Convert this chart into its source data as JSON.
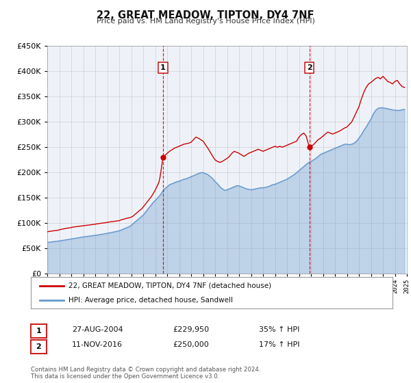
{
  "title": "22, GREAT MEADOW, TIPTON, DY4 7NF",
  "subtitle": "Price paid vs. HM Land Registry's House Price Index (HPI)",
  "legend_entry1": "22, GREAT MEADOW, TIPTON, DY4 7NF (detached house)",
  "legend_entry2": "HPI: Average price, detached house, Sandwell",
  "sale1_date": "27-AUG-2004",
  "sale1_price": "£229,950",
  "sale1_hpi": "35% ↑ HPI",
  "sale1_x": 2004.65,
  "sale1_y": 229950,
  "sale2_date": "11-NOV-2016",
  "sale2_price": "£250,000",
  "sale2_hpi": "17% ↑ HPI",
  "sale2_x": 2016.86,
  "sale2_y": 250000,
  "footer1": "Contains HM Land Registry data © Crown copyright and database right 2024.",
  "footer2": "This data is licensed under the Open Government Licence v3.0.",
  "red_color": "#cc0000",
  "blue_color": "#6699cc",
  "chart_bg": "#eef2f8",
  "fig_bg": "#ffffff",
  "ylim": [
    0,
    450000
  ],
  "xlim_start": 1995,
  "xlim_end": 2025,
  "red_line": {
    "x": [
      1995.0,
      1995.1,
      1995.2,
      1995.3,
      1995.4,
      1995.5,
      1995.6,
      1995.7,
      1995.8,
      1995.9,
      1996.0,
      1996.1,
      1996.2,
      1996.3,
      1996.4,
      1996.5,
      1996.6,
      1996.7,
      1996.8,
      1996.9,
      1997.0,
      1997.1,
      1997.2,
      1997.3,
      1997.4,
      1997.5,
      1997.6,
      1997.7,
      1997.8,
      1997.9,
      1998.0,
      1998.1,
      1998.2,
      1998.3,
      1998.4,
      1998.5,
      1998.6,
      1998.7,
      1998.8,
      1998.9,
      1999.0,
      1999.1,
      1999.2,
      1999.3,
      1999.4,
      1999.5,
      1999.6,
      1999.7,
      1999.8,
      1999.9,
      2000.0,
      2000.1,
      2000.2,
      2000.3,
      2000.4,
      2000.5,
      2000.6,
      2000.7,
      2000.8,
      2000.9,
      2001.0,
      2001.1,
      2001.2,
      2001.3,
      2001.4,
      2001.5,
      2001.6,
      2001.7,
      2001.8,
      2001.9,
      2002.0,
      2002.1,
      2002.2,
      2002.3,
      2002.4,
      2002.5,
      2002.6,
      2002.7,
      2002.8,
      2002.9,
      2003.0,
      2003.1,
      2003.2,
      2003.3,
      2003.4,
      2003.5,
      2003.6,
      2003.7,
      2003.8,
      2003.9,
      2004.0,
      2004.1,
      2004.2,
      2004.3,
      2004.4,
      2004.5,
      2004.65,
      2005.0,
      2005.2,
      2005.4,
      2005.6,
      2005.8,
      2006.0,
      2006.2,
      2006.4,
      2006.6,
      2006.8,
      2007.0,
      2007.2,
      2007.4,
      2007.6,
      2007.8,
      2008.0,
      2008.2,
      2008.4,
      2008.6,
      2008.8,
      2009.0,
      2009.2,
      2009.4,
      2009.6,
      2009.8,
      2010.0,
      2010.2,
      2010.4,
      2010.6,
      2010.8,
      2011.0,
      2011.2,
      2011.4,
      2011.6,
      2011.8,
      2012.0,
      2012.2,
      2012.4,
      2012.6,
      2012.8,
      2013.0,
      2013.2,
      2013.4,
      2013.6,
      2013.8,
      2014.0,
      2014.2,
      2014.4,
      2014.6,
      2014.8,
      2015.0,
      2015.2,
      2015.4,
      2015.6,
      2015.8,
      2016.0,
      2016.2,
      2016.4,
      2016.6,
      2016.86,
      2017.0,
      2017.2,
      2017.4,
      2017.6,
      2017.8,
      2018.0,
      2018.2,
      2018.4,
      2018.6,
      2018.8,
      2019.0,
      2019.2,
      2019.4,
      2019.6,
      2019.8,
      2020.0,
      2020.2,
      2020.4,
      2020.6,
      2020.8,
      2021.0,
      2021.2,
      2021.4,
      2021.6,
      2021.8,
      2022.0,
      2022.2,
      2022.4,
      2022.6,
      2022.8,
      2023.0,
      2023.2,
      2023.4,
      2023.6,
      2023.8,
      2024.0,
      2024.2,
      2024.4,
      2024.6,
      2024.8
    ],
    "y": [
      83000,
      83500,
      84000,
      84200,
      84500,
      85000,
      85200,
      85500,
      85800,
      86000,
      87000,
      87500,
      88000,
      88500,
      89000,
      89500,
      90000,
      90200,
      90500,
      91000,
      91500,
      92000,
      92500,
      92800,
      93000,
      93500,
      93800,
      94000,
      94200,
      94500,
      95000,
      95200,
      95500,
      95800,
      96000,
      96500,
      96800,
      97000,
      97200,
      97500,
      98000,
      98500,
      98800,
      99000,
      99500,
      100000,
      100200,
      100500,
      100800,
      101000,
      101500,
      102000,
      102500,
      102800,
      103000,
      103500,
      103800,
      104000,
      104200,
      104500,
      105000,
      106000,
      107000,
      107500,
      108000,
      109000,
      109500,
      110000,
      110500,
      111000,
      112000,
      113000,
      115000,
      117000,
      119000,
      121000,
      123000,
      125000,
      127000,
      129000,
      132000,
      135000,
      138000,
      141000,
      144000,
      147000,
      150000,
      153000,
      157000,
      161000,
      165000,
      170000,
      175000,
      180000,
      190000,
      205000,
      229950,
      238000,
      242000,
      245000,
      248000,
      250000,
      252000,
      254000,
      256000,
      257000,
      258000,
      260000,
      265000,
      270000,
      268000,
      265000,
      262000,
      255000,
      248000,
      240000,
      232000,
      225000,
      222000,
      220000,
      222000,
      225000,
      228000,
      232000,
      238000,
      242000,
      240000,
      238000,
      235000,
      232000,
      235000,
      238000,
      240000,
      242000,
      244000,
      246000,
      244000,
      242000,
      244000,
      246000,
      248000,
      250000,
      252000,
      250000,
      252000,
      250000,
      252000,
      254000,
      256000,
      258000,
      260000,
      262000,
      270000,
      275000,
      278000,
      272000,
      250000,
      252000,
      255000,
      260000,
      265000,
      268000,
      272000,
      276000,
      280000,
      278000,
      276000,
      278000,
      280000,
      282000,
      285000,
      288000,
      290000,
      295000,
      300000,
      310000,
      320000,
      330000,
      345000,
      358000,
      368000,
      375000,
      378000,
      382000,
      386000,
      388000,
      385000,
      390000,
      385000,
      380000,
      378000,
      375000,
      380000,
      382000,
      375000,
      370000,
      368000
    ]
  },
  "blue_line": {
    "x": [
      1995.0,
      1995.1,
      1995.2,
      1995.3,
      1995.4,
      1995.5,
      1995.6,
      1995.7,
      1995.8,
      1995.9,
      1996.0,
      1996.1,
      1996.2,
      1996.3,
      1996.4,
      1996.5,
      1996.6,
      1996.7,
      1996.8,
      1996.9,
      1997.0,
      1997.1,
      1997.2,
      1997.3,
      1997.4,
      1997.5,
      1997.6,
      1997.7,
      1997.8,
      1997.9,
      1998.0,
      1998.1,
      1998.2,
      1998.3,
      1998.4,
      1998.5,
      1998.6,
      1998.7,
      1998.8,
      1998.9,
      1999.0,
      1999.1,
      1999.2,
      1999.3,
      1999.4,
      1999.5,
      1999.6,
      1999.7,
      1999.8,
      1999.9,
      2000.0,
      2000.1,
      2000.2,
      2000.3,
      2000.4,
      2000.5,
      2000.6,
      2000.7,
      2000.8,
      2000.9,
      2001.0,
      2001.1,
      2001.2,
      2001.3,
      2001.4,
      2001.5,
      2001.6,
      2001.7,
      2001.8,
      2001.9,
      2002.0,
      2002.2,
      2002.4,
      2002.6,
      2002.8,
      2003.0,
      2003.2,
      2003.4,
      2003.6,
      2003.8,
      2004.0,
      2004.2,
      2004.4,
      2004.6,
      2004.8,
      2005.0,
      2005.2,
      2005.4,
      2005.6,
      2005.8,
      2006.0,
      2006.2,
      2006.4,
      2006.6,
      2006.8,
      2007.0,
      2007.2,
      2007.4,
      2007.6,
      2007.8,
      2008.0,
      2008.2,
      2008.4,
      2008.6,
      2008.8,
      2009.0,
      2009.2,
      2009.4,
      2009.6,
      2009.8,
      2010.0,
      2010.2,
      2010.4,
      2010.6,
      2010.8,
      2011.0,
      2011.2,
      2011.4,
      2011.6,
      2011.8,
      2012.0,
      2012.2,
      2012.4,
      2012.6,
      2012.8,
      2013.0,
      2013.2,
      2013.4,
      2013.6,
      2013.8,
      2014.0,
      2014.2,
      2014.4,
      2014.6,
      2014.8,
      2015.0,
      2015.2,
      2015.4,
      2015.6,
      2015.8,
      2016.0,
      2016.2,
      2016.4,
      2016.6,
      2016.8,
      2017.0,
      2017.2,
      2017.4,
      2017.6,
      2017.8,
      2018.0,
      2018.2,
      2018.4,
      2018.6,
      2018.8,
      2019.0,
      2019.2,
      2019.4,
      2019.6,
      2019.8,
      2020.0,
      2020.2,
      2020.4,
      2020.6,
      2020.8,
      2021.0,
      2021.2,
      2021.4,
      2021.6,
      2021.8,
      2022.0,
      2022.2,
      2022.4,
      2022.6,
      2022.8,
      2023.0,
      2023.2,
      2023.4,
      2023.6,
      2023.8,
      2024.0,
      2024.2,
      2024.4,
      2024.6,
      2024.8
    ],
    "y": [
      62000,
      62300,
      62600,
      62900,
      63200,
      63500,
      63800,
      64100,
      64400,
      64700,
      65000,
      65400,
      65800,
      66200,
      66600,
      67000,
      67400,
      67800,
      68200,
      68600,
      69000,
      69400,
      69800,
      70200,
      70600,
      71000,
      71400,
      71800,
      72200,
      72600,
      73000,
      73300,
      73600,
      73900,
      74200,
      74500,
      74800,
      75100,
      75400,
      75700,
      76000,
      76400,
      76800,
      77200,
      77600,
      78000,
      78400,
      78800,
      79200,
      79600,
      80000,
      80500,
      81000,
      81500,
      82000,
      82500,
      83000,
      83500,
      84000,
      84500,
      85000,
      86000,
      87000,
      88000,
      89000,
      90000,
      91000,
      92000,
      93000,
      94000,
      96000,
      100000,
      104000,
      108000,
      112000,
      116000,
      122000,
      128000,
      134000,
      140000,
      145000,
      150000,
      155000,
      162000,
      168000,
      172000,
      176000,
      178000,
      180000,
      182000,
      183000,
      185000,
      187000,
      188000,
      190000,
      192000,
      194000,
      196000,
      198000,
      200000,
      200000,
      198000,
      196000,
      192000,
      188000,
      182000,
      178000,
      172000,
      168000,
      165000,
      166000,
      168000,
      170000,
      172000,
      174000,
      174000,
      172000,
      170000,
      168000,
      167000,
      166000,
      167000,
      168000,
      169000,
      170000,
      170000,
      171000,
      172000,
      174000,
      176000,
      177000,
      179000,
      181000,
      183000,
      185000,
      187000,
      190000,
      193000,
      196000,
      200000,
      204000,
      208000,
      212000,
      216000,
      220000,
      222000,
      225000,
      228000,
      232000,
      236000,
      238000,
      240000,
      242000,
      244000,
      246000,
      248000,
      250000,
      252000,
      254000,
      256000,
      256000,
      255000,
      256000,
      258000,
      262000,
      268000,
      275000,
      283000,
      290000,
      298000,
      306000,
      316000,
      323000,
      327000,
      328000,
      328000,
      327000,
      326000,
      325000,
      324000,
      323000,
      323000,
      323000,
      324000,
      325000
    ]
  }
}
